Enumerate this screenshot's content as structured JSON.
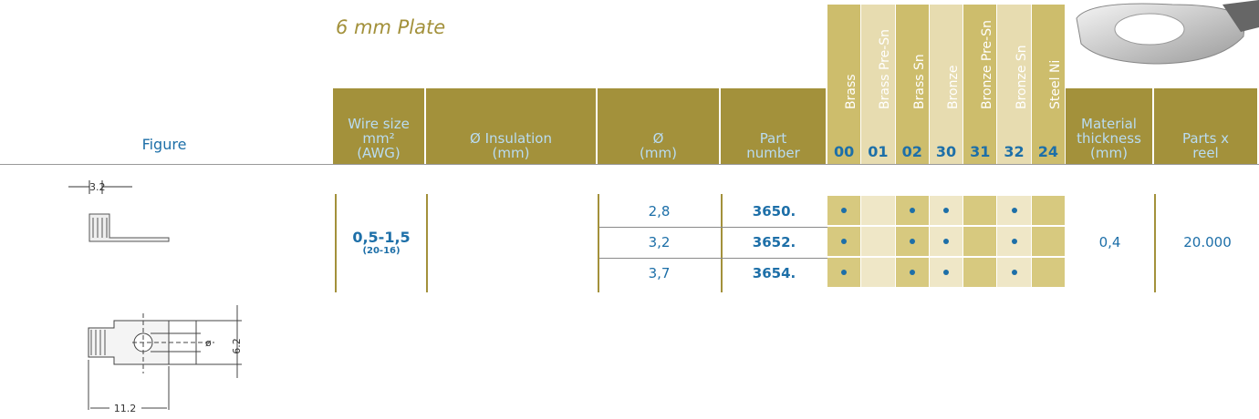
{
  "title": "6 mm Plate",
  "table": {
    "headers": {
      "figure": "Figure",
      "wire_size": [
        "Wire size",
        "mm²",
        "(AWG)"
      ],
      "insulation": [
        "Ø Insulation",
        "(mm)"
      ],
      "diameter": [
        "Ø",
        "(mm)"
      ],
      "part_number": [
        "Part",
        "number"
      ],
      "thickness": [
        "Material",
        "thickness",
        "(mm)"
      ],
      "reel": [
        "Parts x",
        "reel"
      ]
    },
    "materials": [
      {
        "name": "Brass",
        "code": "00"
      },
      {
        "name": "Brass Pre-Sn",
        "code": "01"
      },
      {
        "name": "Brass Sn",
        "code": "02"
      },
      {
        "name": "Bronze",
        "code": "30"
      },
      {
        "name": "Bronze Pre-Sn",
        "code": "31"
      },
      {
        "name": "Bronze Sn",
        "code": "32"
      },
      {
        "name": "Steel Ni",
        "code": "24"
      }
    ],
    "group": {
      "wire_size": "0,5-1,5",
      "awg": "(20-16)",
      "thickness": "0,4",
      "reel": "20.000"
    },
    "rows": [
      {
        "diameter": "2,8",
        "part": "3650.",
        "available": [
          true,
          false,
          true,
          true,
          false,
          true,
          false
        ]
      },
      {
        "diameter": "3,2",
        "part": "3652.",
        "available": [
          true,
          false,
          true,
          true,
          false,
          true,
          false
        ]
      },
      {
        "diameter": "3,7",
        "part": "3654.",
        "available": [
          true,
          false,
          true,
          true,
          false,
          true,
          false
        ]
      }
    ]
  },
  "figures": [
    {
      "labels": [
        "3.2"
      ]
    },
    {
      "labels": [
        "ø",
        "6.2",
        "11.2"
      ]
    }
  ]
}
